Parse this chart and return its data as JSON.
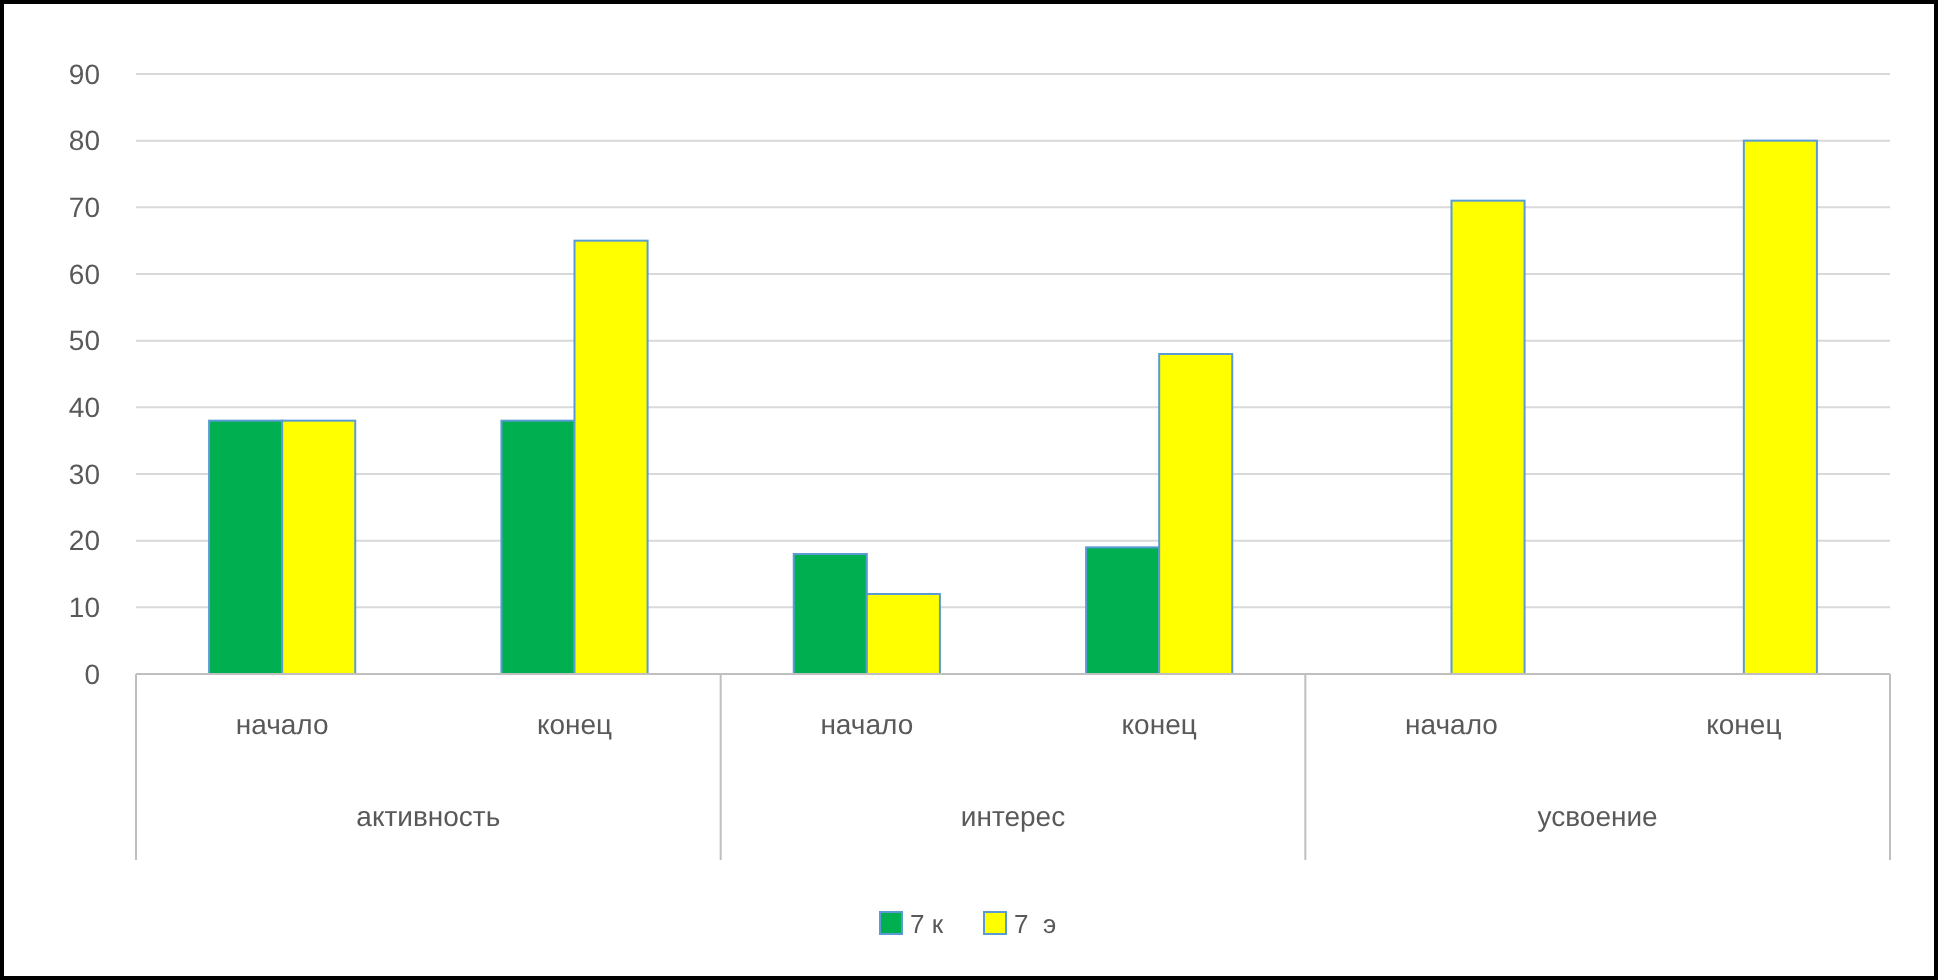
{
  "chart_data": {
    "type": "bar",
    "categories": [
      "начало",
      "конец",
      "начало",
      "конец",
      "начало",
      "конец"
    ],
    "annotations": [
      "активность",
      "интерес",
      "усвоение"
    ],
    "series": [
      {
        "name": "7 к",
        "color": "#00b050",
        "values": [
          38,
          38,
          18,
          19,
          null,
          null
        ]
      },
      {
        "name": "7  э",
        "color": "#ffff00",
        "values": [
          38,
          65,
          12,
          48,
          71,
          80
        ]
      }
    ],
    "ylim": [
      0,
      90
    ],
    "yticks": [
      0,
      10,
      20,
      30,
      40,
      50,
      60,
      70,
      80,
      90
    ],
    "grid": "y",
    "legend": "bottom"
  }
}
